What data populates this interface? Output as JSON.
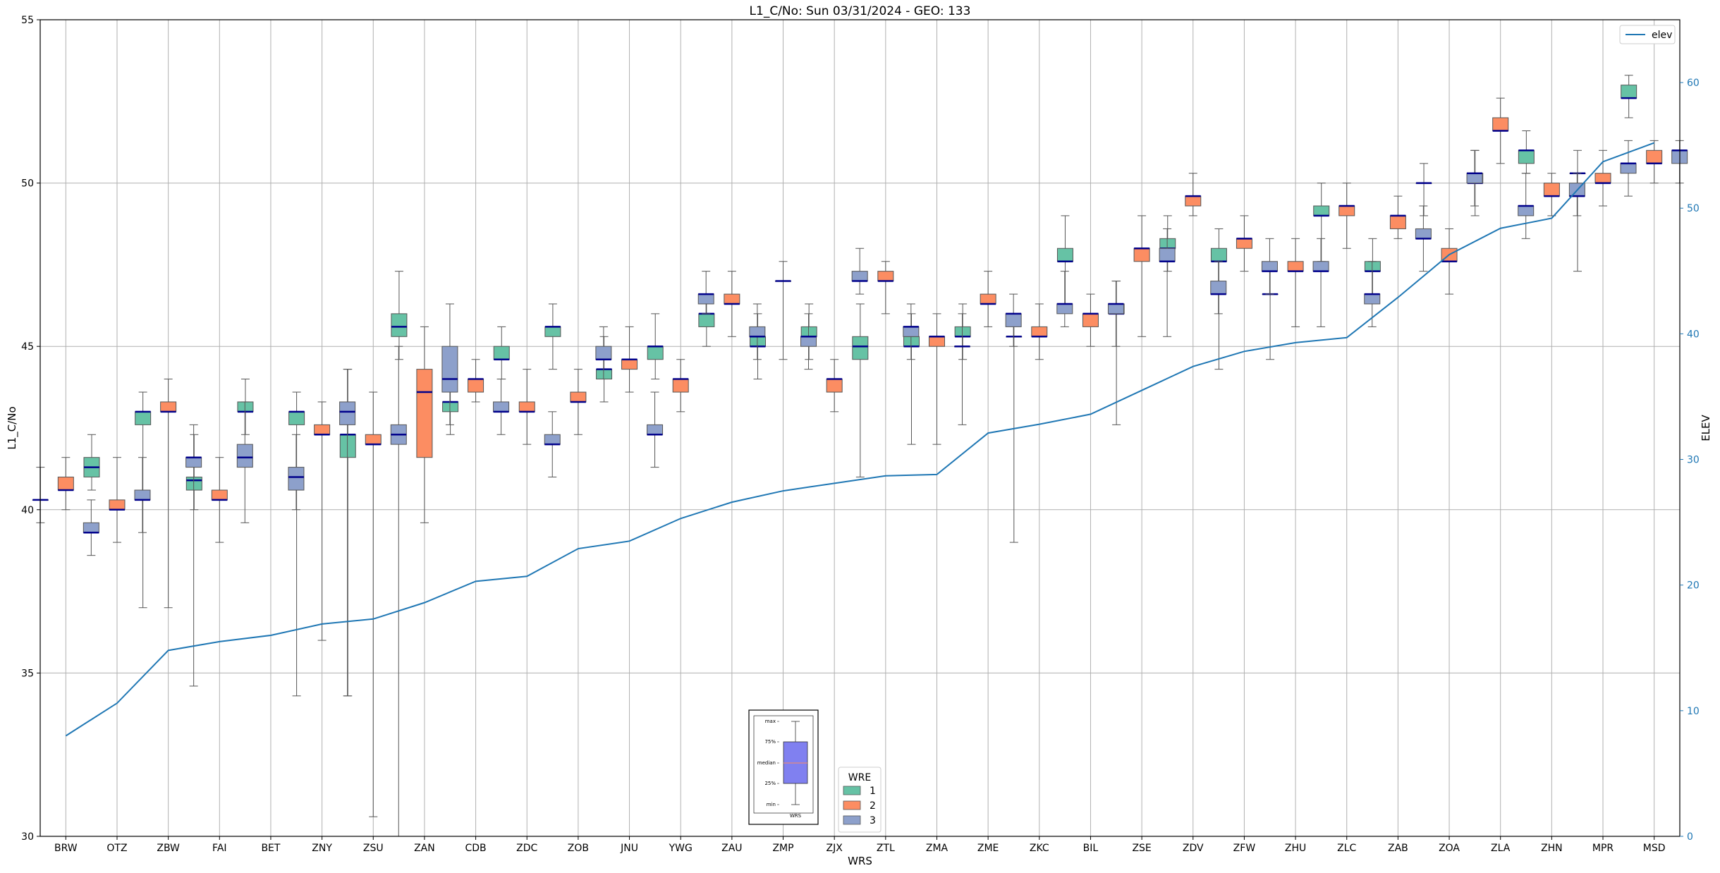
{
  "chart_data": {
    "type": "box",
    "title": "L1_C/No: Sun 03/31/2024 - GEO: 133",
    "xlabel": "WRS",
    "ylabel": "L1_C/No",
    "ylabel_right": "ELEV",
    "ylim": [
      30,
      55
    ],
    "ylim_right": [
      0,
      65
    ],
    "yticks": [
      30,
      35,
      40,
      45,
      50,
      55
    ],
    "yticks_right": [
      0,
      10,
      20,
      30,
      40,
      50,
      60
    ],
    "grid": true,
    "categories": [
      "BRW",
      "OTZ",
      "ZBW",
      "FAI",
      "BET",
      "ZNY",
      "ZSU",
      "ZAN",
      "CDB",
      "ZDC",
      "ZOB",
      "JNU",
      "YWG",
      "ZAU",
      "ZMP",
      "ZJX",
      "ZTL",
      "ZMA",
      "ZME",
      "ZKC",
      "BIL",
      "ZSE",
      "ZDV",
      "ZFW",
      "ZHU",
      "ZLC",
      "ZAB",
      "ZOA",
      "ZLA",
      "ZHN",
      "MPR",
      "MSD"
    ],
    "legend_title": "WRE",
    "colors": {
      "1": "#66c2a5",
      "2": "#fc8d62",
      "3": "#8da0cb",
      "line": "#1f77b4",
      "median": "#00008b",
      "whisker": "#555555"
    },
    "box_series": [
      {
        "name": "1",
        "values": [
          {
            "min": 39.6,
            "q1": 40.3,
            "median": 40.3,
            "q3": 40.3,
            "max": 41.3
          },
          {
            "min": 40.6,
            "q1": 41.0,
            "median": 41.3,
            "q3": 41.6,
            "max": 42.3
          },
          {
            "min": 37.0,
            "q1": 42.6,
            "median": 43.0,
            "q3": 43.0,
            "max": 43.6
          },
          {
            "min": 40.0,
            "q1": 40.6,
            "median": 40.9,
            "q3": 41.0,
            "max": 42.3
          },
          {
            "min": 42.3,
            "q1": 43.0,
            "median": 43.0,
            "q3": 43.3,
            "max": 44.0
          },
          {
            "min": 34.3,
            "q1": 42.6,
            "median": 43.0,
            "q3": 43.0,
            "max": 43.6
          },
          {
            "min": 34.3,
            "q1": 41.6,
            "median": 42.3,
            "q3": 42.3,
            "max": 44.3
          },
          {
            "min": 44.6,
            "q1": 45.3,
            "median": 45.6,
            "q3": 46.0,
            "max": 47.3
          },
          {
            "min": 42.3,
            "q1": 43.0,
            "median": 43.3,
            "q3": 43.3,
            "max": 44.0
          },
          {
            "min": 44.0,
            "q1": 44.6,
            "median": 44.6,
            "q3": 45.0,
            "max": 45.6
          },
          {
            "min": 44.3,
            "q1": 45.3,
            "median": 45.6,
            "q3": 45.6,
            "max": 46.3
          },
          {
            "min": 43.3,
            "q1": 44.0,
            "median": 44.3,
            "q3": 44.3,
            "max": 45.3
          },
          {
            "min": 44.0,
            "q1": 44.6,
            "median": 45.0,
            "q3": 45.0,
            "max": 46.0
          },
          {
            "min": 45.0,
            "q1": 45.6,
            "median": 46.0,
            "q3": 46.0,
            "max": 46.6
          },
          {
            "min": 44.0,
            "q1": 45.0,
            "median": 45.0,
            "q3": 45.3,
            "max": 46.0
          },
          {
            "min": 44.6,
            "q1": 45.3,
            "median": 45.3,
            "q3": 45.6,
            "max": 46.3
          },
          {
            "min": 41.0,
            "q1": 44.6,
            "median": 45.0,
            "q3": 45.3,
            "max": 46.3
          },
          {
            "min": 42.0,
            "q1": 45.0,
            "median": 45.0,
            "q3": 45.3,
            "max": 46.0
          },
          {
            "min": 44.6,
            "q1": 45.3,
            "median": 45.3,
            "q3": 45.6,
            "max": 46.3
          },
          {
            "min": 39.0,
            "q1": 45.3,
            "median": 45.3,
            "q3": 45.3,
            "max": 46.0
          },
          {
            "min": 46.3,
            "q1": 47.6,
            "median": 47.6,
            "q3": 48.0,
            "max": 49.0
          },
          {
            "min": 42.6,
            "q1": 46.0,
            "median": 46.0,
            "q3": 46.3,
            "max": 47.0
          },
          {
            "min": 47.3,
            "q1": 48.0,
            "median": 48.0,
            "q3": 48.3,
            "max": 49.0
          },
          {
            "min": 44.3,
            "q1": 47.6,
            "median": 47.6,
            "q3": 48.0,
            "max": 48.6
          },
          {
            "min": 44.6,
            "q1": 46.6,
            "median": 46.6,
            "q3": 46.6,
            "max": 47.3
          },
          {
            "min": 47.6,
            "q1": 49.0,
            "median": 49.0,
            "q3": 49.3,
            "max": 50.0
          },
          {
            "min": 46.3,
            "q1": 47.3,
            "median": 47.3,
            "q3": 47.6,
            "max": 48.3
          },
          {
            "min": 49.0,
            "q1": 50.0,
            "median": 50.0,
            "q3": 50.0,
            "max": 50.6
          },
          {
            "min": 49.0,
            "q1": 50.0,
            "median": 50.0,
            "q3": 50.3,
            "max": 51.0
          },
          {
            "min": 50.3,
            "q1": 50.6,
            "median": 51.0,
            "q3": 51.0,
            "max": 51.6
          },
          {
            "min": 47.3,
            "q1": 50.3,
            "median": 50.3,
            "q3": 50.3,
            "max": 51.0
          },
          {
            "min": 52.0,
            "q1": 52.6,
            "median": 52.6,
            "q3": 53.0,
            "max": 53.3
          }
        ]
      },
      {
        "name": "2",
        "values": [
          {
            "min": 40.0,
            "q1": 40.6,
            "median": 40.6,
            "q3": 41.0,
            "max": 41.6
          },
          {
            "min": 39.0,
            "q1": 40.0,
            "median": 40.0,
            "q3": 40.3,
            "max": 41.6
          },
          {
            "min": 37.0,
            "q1": 43.0,
            "median": 43.0,
            "q3": 43.3,
            "max": 44.0
          },
          {
            "min": 39.0,
            "q1": 40.3,
            "median": 40.3,
            "q3": 40.6,
            "max": 41.6
          },
          null,
          {
            "min": 36.0,
            "q1": 42.3,
            "median": 42.3,
            "q3": 42.6,
            "max": 43.3
          },
          {
            "min": 30.6,
            "q1": 42.0,
            "median": 42.0,
            "q3": 42.3,
            "max": 43.6
          },
          {
            "min": 39.6,
            "q1": 41.6,
            "median": 43.6,
            "q3": 44.3,
            "max": 45.6
          },
          {
            "min": 43.3,
            "q1": 43.6,
            "median": 44.0,
            "q3": 44.0,
            "max": 44.6
          },
          {
            "min": 42.0,
            "q1": 43.0,
            "median": 43.0,
            "q3": 43.3,
            "max": 44.3
          },
          {
            "min": 42.3,
            "q1": 43.3,
            "median": 43.3,
            "q3": 43.6,
            "max": 44.3
          },
          {
            "min": 43.6,
            "q1": 44.3,
            "median": 44.6,
            "q3": 44.6,
            "max": 45.6
          },
          {
            "min": 43.0,
            "q1": 43.6,
            "median": 44.0,
            "q3": 44.0,
            "max": 44.6
          },
          {
            "min": 45.3,
            "q1": 46.3,
            "median": 46.3,
            "q3": 46.6,
            "max": 47.3
          },
          {
            "min": 44.6,
            "q1": 47.0,
            "median": 47.0,
            "q3": 47.0,
            "max": 47.6
          },
          {
            "min": 43.0,
            "q1": 43.6,
            "median": 44.0,
            "q3": 44.0,
            "max": 44.6
          },
          {
            "min": 46.0,
            "q1": 47.0,
            "median": 47.0,
            "q3": 47.3,
            "max": 47.6
          },
          {
            "min": 42.0,
            "q1": 45.0,
            "median": 45.3,
            "q3": 45.3,
            "max": 46.0
          },
          {
            "min": 45.6,
            "q1": 46.3,
            "median": 46.3,
            "q3": 46.6,
            "max": 47.3
          },
          {
            "min": 44.6,
            "q1": 45.3,
            "median": 45.3,
            "q3": 45.6,
            "max": 46.3
          },
          {
            "min": 45.0,
            "q1": 45.6,
            "median": 46.0,
            "q3": 46.0,
            "max": 46.6
          },
          {
            "min": 45.3,
            "q1": 47.6,
            "median": 48.0,
            "q3": 48.0,
            "max": 49.0
          },
          {
            "min": 49.0,
            "q1": 49.3,
            "median": 49.6,
            "q3": 49.6,
            "max": 50.3
          },
          {
            "min": 47.3,
            "q1": 48.0,
            "median": 48.3,
            "q3": 48.3,
            "max": 49.0
          },
          {
            "min": 45.6,
            "q1": 47.3,
            "median": 47.3,
            "q3": 47.6,
            "max": 48.3
          },
          {
            "min": 48.0,
            "q1": 49.0,
            "median": 49.3,
            "q3": 49.3,
            "max": 50.0
          },
          {
            "min": 48.3,
            "q1": 48.6,
            "median": 49.0,
            "q3": 49.0,
            "max": 49.6
          },
          {
            "min": 46.6,
            "q1": 47.6,
            "median": 47.6,
            "q3": 48.0,
            "max": 48.6
          },
          {
            "min": 50.6,
            "q1": 51.6,
            "median": 51.6,
            "q3": 52.0,
            "max": 52.6
          },
          {
            "min": 49.0,
            "q1": 49.6,
            "median": 49.6,
            "q3": 50.0,
            "max": 50.3
          },
          {
            "min": 49.3,
            "q1": 50.0,
            "median": 50.0,
            "q3": 50.3,
            "max": 51.0
          },
          {
            "min": 50.0,
            "q1": 50.6,
            "median": 50.6,
            "q3": 51.0,
            "max": 51.3
          }
        ]
      },
      {
        "name": "3",
        "values": [
          {
            "min": 38.6,
            "q1": 39.3,
            "median": 39.3,
            "q3": 39.6,
            "max": 40.3
          },
          {
            "min": 39.3,
            "q1": 40.3,
            "median": 40.3,
            "q3": 40.6,
            "max": 41.6
          },
          {
            "min": 34.6,
            "q1": 41.3,
            "median": 41.6,
            "q3": 41.6,
            "max": 42.6
          },
          {
            "min": 39.6,
            "q1": 41.3,
            "median": 41.6,
            "q3": 42.0,
            "max": 43.3
          },
          {
            "min": 40.0,
            "q1": 40.6,
            "median": 41.0,
            "q3": 41.3,
            "max": 42.3
          },
          {
            "min": 34.3,
            "q1": 42.6,
            "median": 43.0,
            "q3": 43.3,
            "max": 44.3
          },
          {
            "min": 30.0,
            "q1": 42.0,
            "median": 42.3,
            "q3": 42.6,
            "max": 45.0
          },
          {
            "min": 42.6,
            "q1": 43.6,
            "median": 44.0,
            "q3": 45.0,
            "max": 46.3
          },
          {
            "min": 42.3,
            "q1": 43.0,
            "median": 43.0,
            "q3": 43.3,
            "max": 44.0
          },
          {
            "min": 41.0,
            "q1": 42.0,
            "median": 42.0,
            "q3": 42.3,
            "max": 43.0
          },
          {
            "min": 44.0,
            "q1": 44.6,
            "median": 44.6,
            "q3": 45.0,
            "max": 45.6
          },
          {
            "min": 41.3,
            "q1": 42.3,
            "median": 42.3,
            "q3": 42.6,
            "max": 43.6
          },
          {
            "min": 46.0,
            "q1": 46.3,
            "median": 46.6,
            "q3": 46.6,
            "max": 47.3
          },
          {
            "min": 44.6,
            "q1": 45.3,
            "median": 45.3,
            "q3": 45.6,
            "max": 46.3
          },
          {
            "min": 44.3,
            "q1": 45.0,
            "median": 45.3,
            "q3": 45.3,
            "max": 46.0
          },
          {
            "min": 46.6,
            "q1": 47.0,
            "median": 47.0,
            "q3": 47.3,
            "max": 48.0
          },
          {
            "min": 44.6,
            "q1": 45.3,
            "median": 45.6,
            "q3": 45.6,
            "max": 46.3
          },
          {
            "min": 42.6,
            "q1": 45.0,
            "median": 45.0,
            "q3": 45.0,
            "max": 46.0
          },
          {
            "min": 45.0,
            "q1": 45.6,
            "median": 46.0,
            "q3": 46.0,
            "max": 46.6
          },
          {
            "min": 45.6,
            "q1": 46.0,
            "median": 46.3,
            "q3": 46.3,
            "max": 47.3
          },
          {
            "min": 45.0,
            "q1": 46.0,
            "median": 46.3,
            "q3": 46.3,
            "max": 47.0
          },
          {
            "min": 45.3,
            "q1": 47.6,
            "median": 47.6,
            "q3": 48.0,
            "max": 48.6
          },
          {
            "min": 46.0,
            "q1": 46.6,
            "median": 46.6,
            "q3": 47.0,
            "max": 47.6
          },
          {
            "min": 46.6,
            "q1": 47.3,
            "median": 47.3,
            "q3": 47.6,
            "max": 48.3
          },
          {
            "min": 45.6,
            "q1": 47.3,
            "median": 47.3,
            "q3": 47.6,
            "max": 48.3
          },
          {
            "min": 45.6,
            "q1": 46.3,
            "median": 46.6,
            "q3": 46.6,
            "max": 47.6
          },
          {
            "min": 47.3,
            "q1": 48.3,
            "median": 48.3,
            "q3": 48.6,
            "max": 49.3
          },
          {
            "min": 49.3,
            "q1": 50.0,
            "median": 50.3,
            "q3": 50.3,
            "max": 51.0
          },
          {
            "min": 48.3,
            "q1": 49.0,
            "median": 49.3,
            "q3": 49.3,
            "max": 50.3
          },
          {
            "min": 49.0,
            "q1": 49.6,
            "median": 49.6,
            "q3": 50.0,
            "max": 50.3
          },
          {
            "min": 49.6,
            "q1": 50.3,
            "median": 50.6,
            "q3": 50.6,
            "max": 51.3
          },
          {
            "min": 50.0,
            "q1": 50.6,
            "median": 51.0,
            "q3": 51.0,
            "max": 51.3
          }
        ]
      }
    ],
    "line_series": {
      "name": "elev",
      "axis": "right",
      "values": [
        8.0,
        10.6,
        14.8,
        15.5,
        16.0,
        16.9,
        17.3,
        18.6,
        20.3,
        20.7,
        22.9,
        23.5,
        25.3,
        26.6,
        27.5,
        28.1,
        28.7,
        28.8,
        32.1,
        32.8,
        33.6,
        35.5,
        37.4,
        38.6,
        39.3,
        39.7,
        42.9,
        46.3,
        48.4,
        49.2,
        53.7,
        55.2
      ]
    },
    "inset": {
      "labels": [
        "max",
        "75%",
        "median",
        "25%",
        "min"
      ],
      "xlabel": "WRS",
      "color": "#8080f0"
    }
  }
}
